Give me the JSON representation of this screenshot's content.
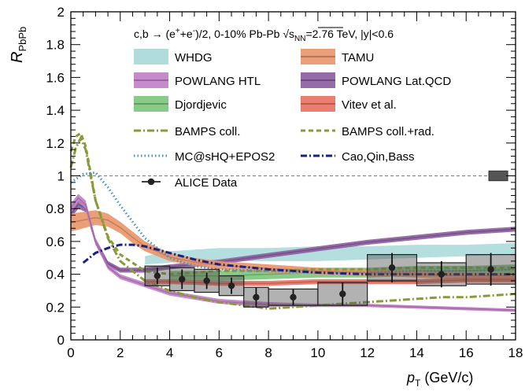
{
  "chart_data": {
    "type": "line",
    "title": "c,b → (e⁺+e⁻)/2, 0-10% Pb-Pb √s_NN=2.76 TeV, |y|<0.6",
    "title_parts": {
      "prefix": "c,b → (e",
      "sup1": "+",
      "mid": "+e",
      "sup2": "-",
      "after": ")/2, 0-10% Pb-Pb ",
      "sqrt_s": "s",
      "sqrt_sub": "NN",
      "suffix": "=2.76 TeV, |y|<0.6"
    },
    "xlabel": {
      "main": "p",
      "sub": "T",
      "unit": " (GeV/c)"
    },
    "ylabel": {
      "main": "R",
      "sub": "PbPb"
    },
    "xlim": [
      0,
      18
    ],
    "ylim": [
      0,
      2
    ],
    "xticks": [
      "0",
      "2",
      "4",
      "6",
      "8",
      "10",
      "12",
      "14",
      "16",
      "18"
    ],
    "yticks": [
      "0",
      "0.2",
      "0.4",
      "0.6",
      "0.8",
      "1",
      "1.2",
      "1.4",
      "1.6",
      "1.8",
      "2"
    ],
    "reference_line": 1,
    "legend_position": "top",
    "bands": [
      {
        "name": "WHDG",
        "color": "#a8d8d8",
        "x": [
          3,
          4,
          5,
          6,
          7,
          8,
          10,
          12,
          14,
          16,
          18
        ],
        "lo": [
          0.46,
          0.47,
          0.48,
          0.48,
          0.48,
          0.48,
          0.48,
          0.49,
          0.5,
          0.51,
          0.52
        ],
        "hi": [
          0.51,
          0.54,
          0.55,
          0.56,
          0.56,
          0.56,
          0.57,
          0.57,
          0.58,
          0.58,
          0.59
        ]
      },
      {
        "name": "TAMU",
        "color": "#e8956a",
        "x": [
          0,
          0.5,
          1,
          1.5,
          2,
          2.5,
          3,
          4,
          5,
          6,
          8,
          10,
          12,
          14,
          16,
          18
        ],
        "lo": [
          0.66,
          0.68,
          0.7,
          0.69,
          0.65,
          0.59,
          0.54,
          0.48,
          0.45,
          0.43,
          0.41,
          0.4,
          0.39,
          0.38,
          0.37,
          0.37
        ],
        "hi": [
          0.77,
          0.78,
          0.79,
          0.77,
          0.72,
          0.66,
          0.6,
          0.53,
          0.5,
          0.48,
          0.46,
          0.44,
          0.43,
          0.42,
          0.41,
          0.41
        ]
      },
      {
        "name": "POWLANG HTL",
        "color": "#c07ec4",
        "x": [
          0,
          0.3,
          0.6,
          1,
          1.5,
          2,
          3,
          4,
          6,
          8,
          10,
          12,
          14,
          16,
          18
        ],
        "lo": [
          0.78,
          0.84,
          0.8,
          0.58,
          0.43,
          0.37,
          0.32,
          0.27,
          0.22,
          0.2,
          0.2,
          0.2,
          0.19,
          0.18,
          0.17
        ],
        "hi": [
          0.83,
          0.89,
          0.85,
          0.62,
          0.46,
          0.4,
          0.35,
          0.3,
          0.25,
          0.23,
          0.22,
          0.22,
          0.21,
          0.2,
          0.19
        ]
      },
      {
        "name": "POWLANG Lat.QCD",
        "color": "#8a5c9e",
        "x": [
          0,
          0.3,
          0.6,
          1,
          1.5,
          2,
          3,
          4,
          6,
          8,
          10,
          12,
          14,
          16,
          18
        ],
        "lo": [
          0.74,
          0.8,
          0.78,
          0.58,
          0.45,
          0.41,
          0.41,
          0.43,
          0.46,
          0.5,
          0.54,
          0.58,
          0.61,
          0.64,
          0.66
        ],
        "hi": [
          0.79,
          0.85,
          0.83,
          0.62,
          0.48,
          0.44,
          0.44,
          0.46,
          0.49,
          0.53,
          0.57,
          0.61,
          0.64,
          0.67,
          0.69
        ]
      },
      {
        "name": "Djordjevic",
        "color": "#7cc47c",
        "x": [
          4,
          6,
          8,
          10,
          12,
          14,
          16,
          18
        ],
        "lo": [
          0.36,
          0.36,
          0.37,
          0.38,
          0.38,
          0.39,
          0.39,
          0.4
        ],
        "hi": [
          0.42,
          0.42,
          0.43,
          0.44,
          0.44,
          0.45,
          0.45,
          0.46
        ]
      },
      {
        "name": "Vitev et al.",
        "color": "#e87060",
        "x": [
          3,
          4,
          6,
          8,
          10,
          12,
          14,
          16,
          18
        ],
        "lo": [
          0.34,
          0.34,
          0.33,
          0.33,
          0.34,
          0.34,
          0.34,
          0.35,
          0.35
        ],
        "hi": [
          0.37,
          0.37,
          0.36,
          0.36,
          0.37,
          0.37,
          0.37,
          0.38,
          0.38
        ]
      }
    ],
    "curves": [
      {
        "name": "BAMPS coll.",
        "color": "#8a9a3a",
        "dash": "9,3,2,3",
        "x": [
          0,
          0.2,
          0.4,
          0.6,
          0.8,
          1,
          1.5,
          2,
          3,
          4,
          5,
          6,
          7,
          8,
          9,
          10,
          11,
          12,
          13,
          14,
          15,
          16,
          17,
          18
        ],
        "y": [
          1.05,
          1.17,
          1.23,
          1.16,
          1.0,
          0.85,
          0.62,
          0.48,
          0.36,
          0.3,
          0.26,
          0.23,
          0.21,
          0.19,
          0.2,
          0.21,
          0.22,
          0.23,
          0.24,
          0.25,
          0.26,
          0.26,
          0.27,
          0.28
        ]
      },
      {
        "name": "BAMPS coll.+rad.",
        "color": "#8a9a3a",
        "dash": "6,4",
        "x": [
          0,
          0.2,
          0.4,
          0.6,
          0.8,
          1,
          1.5,
          2,
          3,
          4,
          5,
          6,
          7,
          8,
          10,
          12,
          14,
          16,
          18
        ],
        "y": [
          1.15,
          1.24,
          1.26,
          1.18,
          1.02,
          0.85,
          0.63,
          0.52,
          0.42,
          0.4,
          0.41,
          0.42,
          0.42,
          0.42,
          0.43,
          0.43,
          0.44,
          0.44,
          0.44
        ]
      },
      {
        "name": "MC@sHQ+EPOS2",
        "color": "#4a90c8",
        "dash": "1.5,3",
        "x": [
          0,
          0.5,
          1,
          1.5,
          2,
          3,
          4,
          5,
          6,
          8,
          10,
          12,
          14,
          16,
          18
        ],
        "y": [
          0.96,
          1.01,
          1.02,
          0.93,
          0.82,
          0.62,
          0.5,
          0.45,
          0.43,
          0.42,
          0.41,
          0.41,
          0.42,
          0.42,
          0.43
        ]
      },
      {
        "name": "Cao,Qin,Bass",
        "color": "#1a237e",
        "dash": "8,3,2,3",
        "x": [
          0.5,
          1,
          1.5,
          2,
          2.5,
          3,
          4,
          5,
          6,
          8,
          10,
          12,
          14,
          16,
          18
        ],
        "y": [
          0.47,
          0.53,
          0.56,
          0.58,
          0.58,
          0.57,
          0.53,
          0.49,
          0.46,
          0.43,
          0.41,
          0.4,
          0.4,
          0.4,
          0.4
        ]
      }
    ],
    "alice_data": {
      "name": "ALICE Data",
      "color": "#222222",
      "points": [
        {
          "x": 3.5,
          "y": 0.39,
          "stat": 0.05,
          "sys": 0.06,
          "xlo": 3,
          "xhi": 4
        },
        {
          "x": 4.5,
          "y": 0.37,
          "stat": 0.06,
          "sys": 0.07,
          "xlo": 4,
          "xhi": 5
        },
        {
          "x": 5.5,
          "y": 0.36,
          "stat": 0.05,
          "sys": 0.07,
          "xlo": 5,
          "xhi": 6
        },
        {
          "x": 6.5,
          "y": 0.33,
          "stat": 0.05,
          "sys": 0.06,
          "xlo": 6,
          "xhi": 7
        },
        {
          "x": 7.5,
          "y": 0.26,
          "stat": 0.06,
          "sys": 0.06,
          "xlo": 7,
          "xhi": 8
        },
        {
          "x": 9,
          "y": 0.26,
          "stat": 0.05,
          "sys": 0.05,
          "xlo": 8,
          "xhi": 10
        },
        {
          "x": 11,
          "y": 0.28,
          "stat": 0.07,
          "sys": 0.07,
          "xlo": 10,
          "xhi": 12
        },
        {
          "x": 13,
          "y": 0.44,
          "stat": 0.09,
          "sys": 0.08,
          "xlo": 12,
          "xhi": 14
        },
        {
          "x": 15,
          "y": 0.4,
          "stat": 0.08,
          "sys": 0.07,
          "xlo": 14,
          "xhi": 16
        },
        {
          "x": 17,
          "y": 0.43,
          "stat": 0.1,
          "sys": 0.09,
          "xlo": 16,
          "xhi": 18
        }
      ],
      "normalization_box": {
        "x": 17.3,
        "y": 1.0,
        "height": 0.05
      }
    },
    "legend": [
      {
        "label": "WHDG",
        "kind": "band",
        "ref": "WHDG"
      },
      {
        "label": "TAMU",
        "kind": "band",
        "ref": "TAMU"
      },
      {
        "label": "POWLANG HTL",
        "kind": "band",
        "ref": "POWLANG HTL"
      },
      {
        "label": "POWLANG Lat.QCD",
        "kind": "band",
        "ref": "POWLANG Lat.QCD"
      },
      {
        "label": "Djordjevic",
        "kind": "band",
        "ref": "Djordjevic"
      },
      {
        "label": "Vitev et al.",
        "kind": "band",
        "ref": "Vitev et al."
      },
      {
        "label": "BAMPS coll.",
        "kind": "curve",
        "ref": "BAMPS coll."
      },
      {
        "label": "BAMPS coll.+rad.",
        "kind": "curve",
        "ref": "BAMPS coll.+rad."
      },
      {
        "label": "MC@sHQ+EPOS2",
        "kind": "curve",
        "ref": "MC@sHQ+EPOS2"
      },
      {
        "label": "Cao,Qin,Bass",
        "kind": "curve",
        "ref": "Cao,Qin,Bass"
      },
      {
        "label": "ALICE Data",
        "kind": "marker",
        "ref": "ALICE Data"
      }
    ]
  }
}
